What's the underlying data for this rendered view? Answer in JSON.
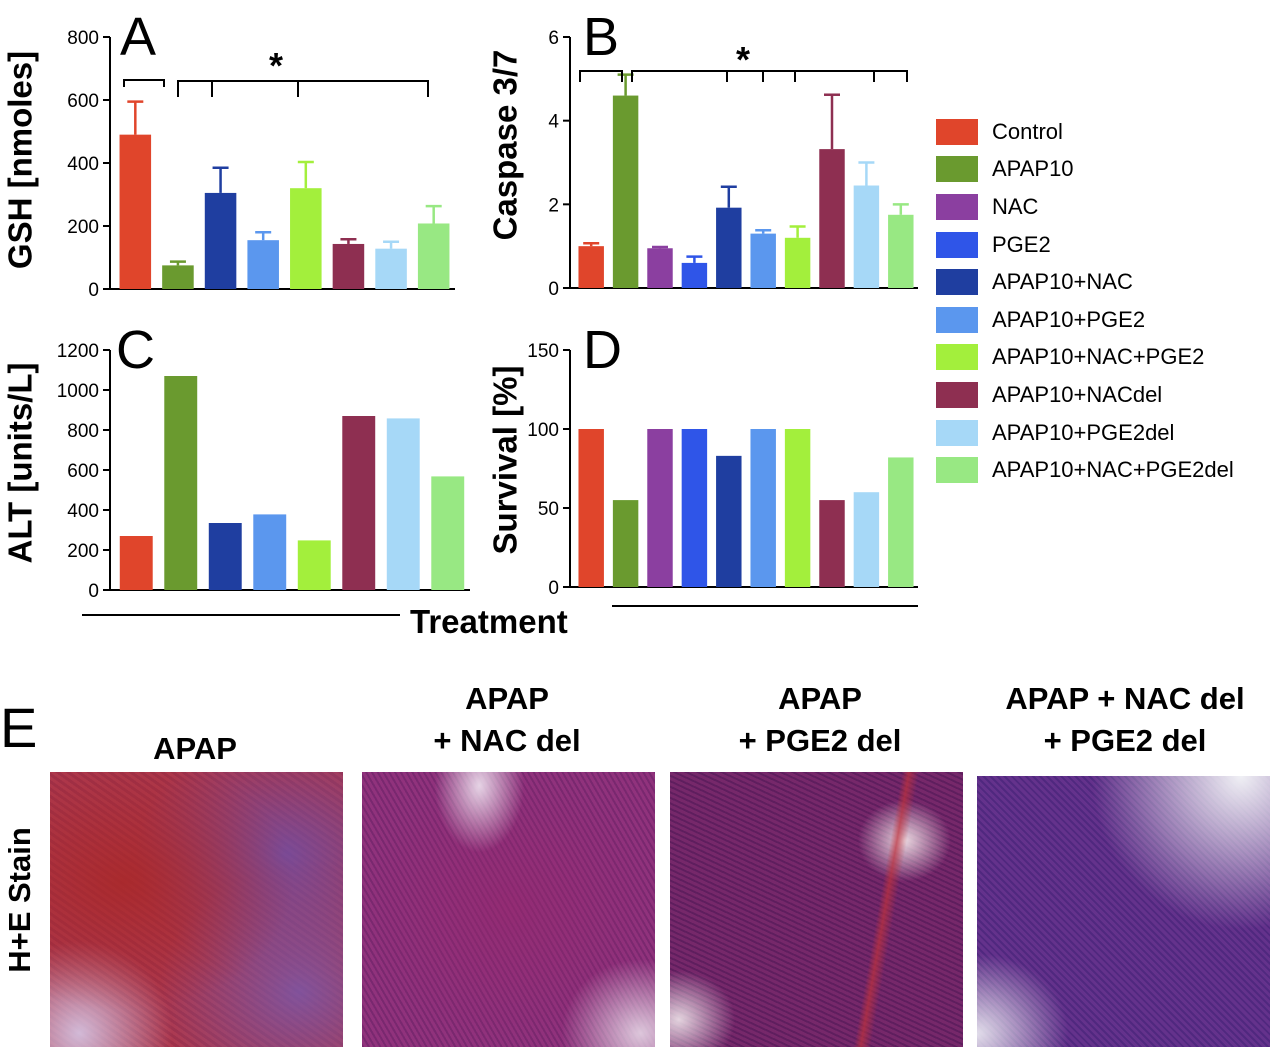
{
  "colors": {
    "Control": "#e0452b",
    "APAP10": "#6a9a2f",
    "NAC": "#8b3fa0",
    "PGE2": "#2f55e8",
    "APAP10+NAC": "#1f3ea0",
    "APAP10+PGE2": "#5b97ee",
    "APAP10+NAC+PGE2": "#a3ef3c",
    "APAP10+NACdel": "#8e2f51",
    "APAP10+PGE2del": "#a6d8f7",
    "APAP10+NAC+PGE2del": "#98e883"
  },
  "legend": [
    "Control",
    "APAP10",
    "NAC",
    "PGE2",
    "APAP10+NAC",
    "APAP10+PGE2",
    "APAP10+NAC+PGE2",
    "APAP10+NACdel",
    "APAP10+PGE2del",
    "APAP10+NAC+PGE2del"
  ],
  "chart_data": [
    {
      "panel": "A",
      "type": "bar",
      "ylabel": "GSH [nmoles]",
      "ylim": [
        0,
        800
      ],
      "yticks": [
        "0",
        "200",
        "400",
        "600",
        "800"
      ],
      "categories": [
        "Control",
        "APAP10",
        "APAP10+NAC",
        "APAP10+PGE2",
        "APAP10+NAC+PGE2",
        "APAP10+NACdel",
        "APAP10+PGE2del",
        "APAP10+NAC+PGE2del"
      ],
      "values": [
        490,
        75,
        305,
        155,
        320,
        143,
        128,
        208
      ],
      "errors": [
        105,
        12,
        80,
        25,
        83,
        15,
        22,
        55
      ],
      "significance": "*"
    },
    {
      "panel": "B",
      "type": "bar",
      "ylabel": "Caspase 3/7",
      "ylim": [
        0,
        6
      ],
      "yticks": [
        "0",
        "2",
        "4",
        "6"
      ],
      "categories": [
        "Control",
        "APAP10",
        "NAC",
        "PGE2",
        "APAP10+NAC",
        "APAP10+PGE2",
        "APAP10+NAC+PGE2",
        "APAP10+NACdel",
        "APAP10+PGE2del",
        "APAP10+NAC+PGE2del"
      ],
      "values": [
        1.0,
        4.6,
        0.95,
        0.6,
        1.92,
        1.3,
        1.2,
        3.32,
        2.45,
        1.75
      ],
      "errors": [
        0.07,
        0.5,
        0.03,
        0.15,
        0.5,
        0.08,
        0.27,
        1.3,
        0.55,
        0.25
      ],
      "significance": "*"
    },
    {
      "panel": "C",
      "type": "bar",
      "ylabel": "ALT [units/L]",
      "ylim": [
        0,
        1200
      ],
      "yticks": [
        "0",
        "200",
        "400",
        "600",
        "800",
        "1000",
        "1200"
      ],
      "categories": [
        "Control",
        "APAP10",
        "APAP10+NAC",
        "APAP10+PGE2",
        "APAP10+NAC+PGE2",
        "APAP10+NACdel",
        "APAP10+PGE2del",
        "APAP10+NAC+PGE2del"
      ],
      "values": [
        270,
        1070,
        335,
        378,
        248,
        870,
        858,
        568
      ]
    },
    {
      "panel": "D",
      "type": "bar",
      "ylabel": "Survival [%]",
      "ylim": [
        0,
        150
      ],
      "yticks": [
        "0",
        "50",
        "100",
        "150"
      ],
      "categories": [
        "Control",
        "APAP10",
        "NAC",
        "PGE2",
        "APAP10+NAC",
        "APAP10+PGE2",
        "APAP10+NAC+PGE2",
        "APAP10+NACdel",
        "APAP10+PGE2del",
        "APAP10+NAC+PGE2del"
      ],
      "values": [
        100,
        55,
        100,
        100,
        83,
        100,
        100,
        55,
        60,
        82
      ]
    }
  ],
  "xlabel": "Treatment",
  "panel_e": {
    "letter": "E",
    "row_label": "H+E Stain",
    "titles": [
      "APAP",
      "APAP\n+ NAC del",
      "APAP\n+ PGE2 del",
      "APAP + NAC del\n+ PGE2 del"
    ]
  }
}
